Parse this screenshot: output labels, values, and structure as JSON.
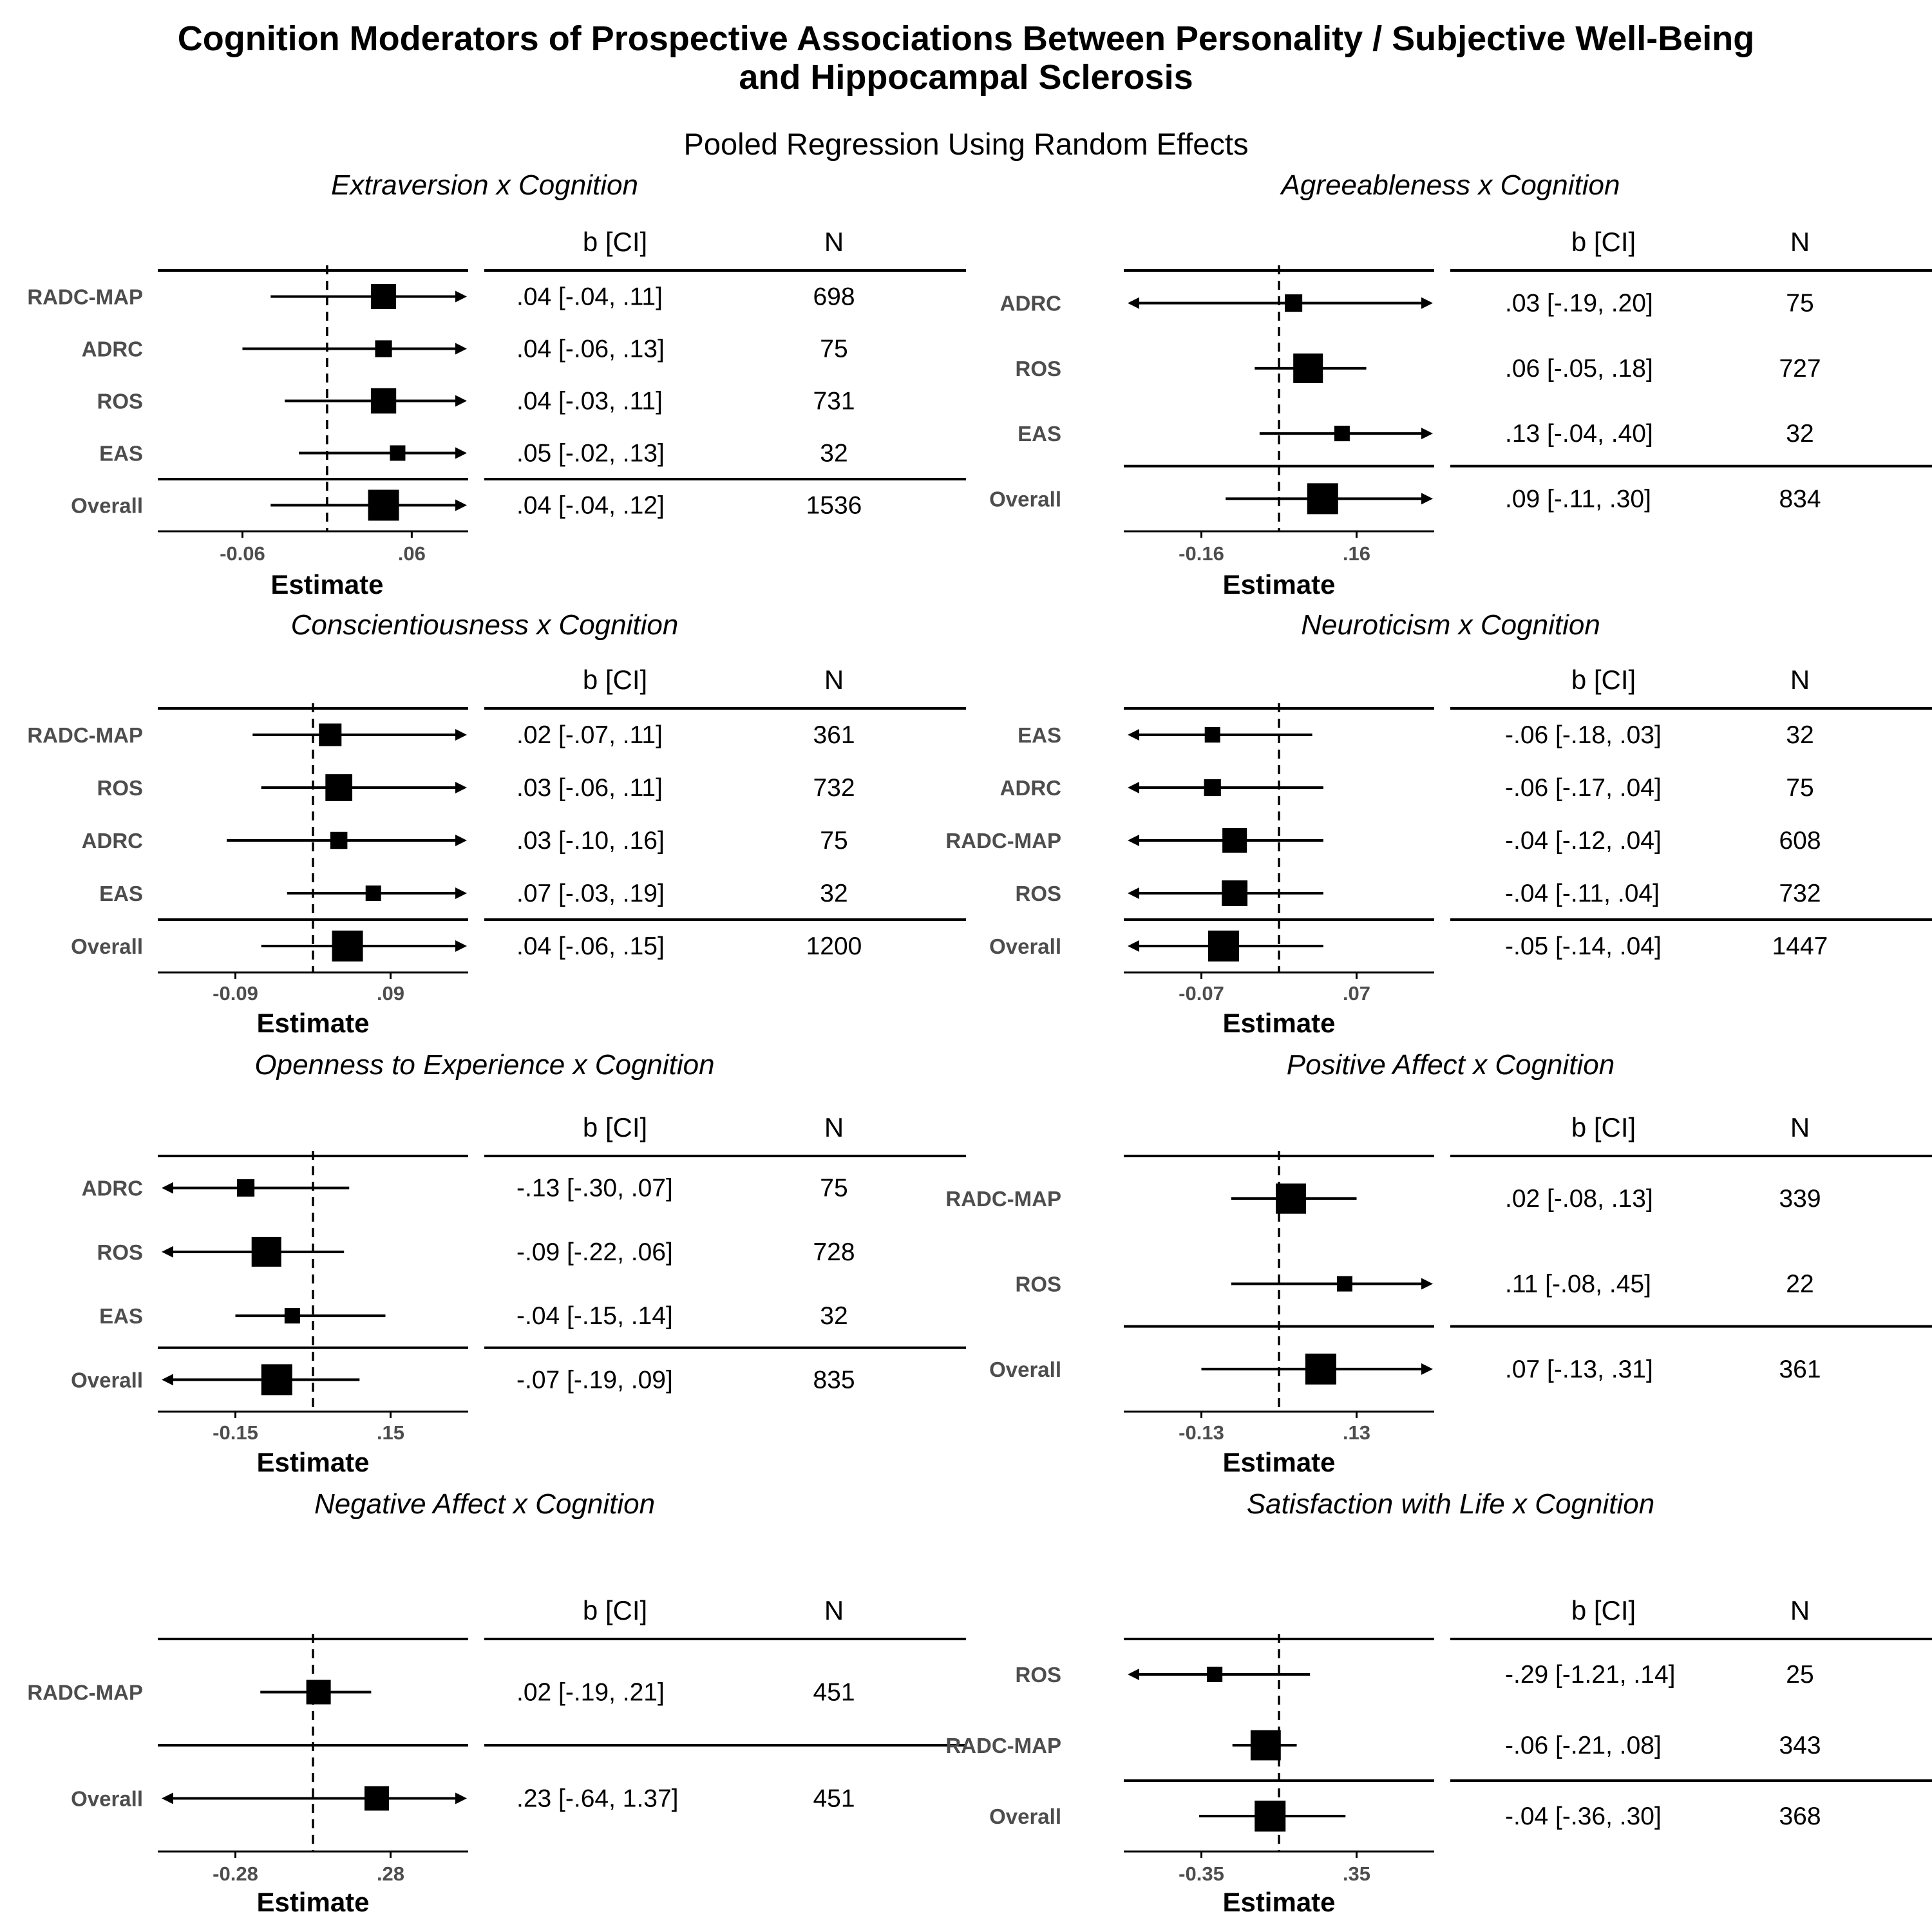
{
  "title": {
    "line1": "Cognition Moderators of Prospective Associations Between Personality / Subjective Well-Being",
    "line2": "and Hippocampal Sclerosis",
    "subtitle": "Pooled Regression Using Random Effects"
  },
  "table_headers": {
    "estimate": "b [CI]",
    "n": "N"
  },
  "axis_title": "Estimate",
  "chart_data": [
    {
      "type": "forest",
      "title": "Extraversion x Cognition",
      "xlim": [
        -0.12,
        0.1
      ],
      "ticks": [
        -0.06,
        0.06
      ],
      "tick_labels": [
        "-0.06",
        ".06"
      ],
      "xlabel": "Estimate",
      "rows": [
        {
          "study": "RADC-MAP",
          "b": 0.04,
          "lo": -0.04,
          "hi": 0.11,
          "n": 698,
          "text": ".04 [-.04, .11]",
          "n_text": "698",
          "arrow_lo": false,
          "arrow_hi": true
        },
        {
          "study": "ADRC",
          "b": 0.04,
          "lo": -0.06,
          "hi": 0.13,
          "n": 75,
          "text": ".04 [-.06, .13]",
          "n_text": "75",
          "arrow_lo": false,
          "arrow_hi": true
        },
        {
          "study": "ROS",
          "b": 0.04,
          "lo": -0.03,
          "hi": 0.11,
          "n": 731,
          "text": ".04 [-.03, .11]",
          "n_text": "731",
          "arrow_lo": false,
          "arrow_hi": true
        },
        {
          "study": "EAS",
          "b": 0.05,
          "lo": -0.02,
          "hi": 0.13,
          "n": 32,
          "text": ".05 [-.02, .13]",
          "n_text": "32",
          "arrow_lo": false,
          "arrow_hi": true
        }
      ],
      "overall": {
        "study": "Overall",
        "b": 0.04,
        "lo": -0.04,
        "hi": 0.12,
        "n": 1536,
        "text": ".04 [-.04, .12]",
        "n_text": "1536",
        "arrow_lo": false,
        "arrow_hi": true
      }
    },
    {
      "type": "forest",
      "title": "Agreeableness x Cognition",
      "xlim": [
        -0.32,
        0.32
      ],
      "ticks": [
        -0.16,
        0.16
      ],
      "tick_labels": [
        "-0.16",
        ".16"
      ],
      "xlabel": "Estimate",
      "rows": [
        {
          "study": "ADRC",
          "b": 0.03,
          "lo": -0.19,
          "hi": 0.2,
          "n": 75,
          "text": ".03 [-.19, .20]",
          "n_text": "75",
          "arrow_lo": true,
          "arrow_hi": true
        },
        {
          "study": "ROS",
          "b": 0.06,
          "lo": -0.05,
          "hi": 0.18,
          "n": 727,
          "text": ".06 [-.05, .18]",
          "n_text": "727",
          "arrow_lo": false,
          "arrow_hi": false
        },
        {
          "study": "EAS",
          "b": 0.13,
          "lo": -0.04,
          "hi": 0.4,
          "n": 32,
          "text": ".13 [-.04, .40]",
          "n_text": "32",
          "arrow_lo": false,
          "arrow_hi": true
        }
      ],
      "overall": {
        "study": "Overall",
        "b": 0.09,
        "lo": -0.11,
        "hi": 0.3,
        "n": 834,
        "text": ".09 [-.11, .30]",
        "n_text": "834",
        "arrow_lo": false,
        "arrow_hi": true
      }
    },
    {
      "type": "forest",
      "title": "Conscientiousness x Cognition",
      "xlim": [
        -0.18,
        0.18
      ],
      "ticks": [
        -0.09,
        0.09
      ],
      "tick_labels": [
        "-0.09",
        ".09"
      ],
      "xlabel": "Estimate",
      "rows": [
        {
          "study": "RADC-MAP",
          "b": 0.02,
          "lo": -0.07,
          "hi": 0.11,
          "n": 361,
          "text": ".02 [-.07, .11]",
          "n_text": "361",
          "arrow_lo": false,
          "arrow_hi": true
        },
        {
          "study": "ROS",
          "b": 0.03,
          "lo": -0.06,
          "hi": 0.11,
          "n": 732,
          "text": ".03 [-.06, .11]",
          "n_text": "732",
          "arrow_lo": false,
          "arrow_hi": true
        },
        {
          "study": "ADRC",
          "b": 0.03,
          "lo": -0.1,
          "hi": 0.16,
          "n": 75,
          "text": ".03 [-.10, .16]",
          "n_text": "75",
          "arrow_lo": false,
          "arrow_hi": true
        },
        {
          "study": "EAS",
          "b": 0.07,
          "lo": -0.03,
          "hi": 0.19,
          "n": 32,
          "text": ".07 [-.03, .19]",
          "n_text": "32",
          "arrow_lo": false,
          "arrow_hi": true
        }
      ],
      "overall": {
        "study": "Overall",
        "b": 0.04,
        "lo": -0.06,
        "hi": 0.15,
        "n": 1200,
        "text": ".04 [-.06, .15]",
        "n_text": "1200",
        "arrow_lo": false,
        "arrow_hi": true
      }
    },
    {
      "type": "forest",
      "title": "Neuroticism x Cognition",
      "xlim": [
        -0.14,
        0.14
      ],
      "ticks": [
        -0.07,
        0.07
      ],
      "tick_labels": [
        "-0.07",
        ".07"
      ],
      "xlabel": "Estimate",
      "rows": [
        {
          "study": "EAS",
          "b": -0.06,
          "lo": -0.18,
          "hi": 0.03,
          "n": 32,
          "text": "-.06 [-.18, .03]",
          "n_text": "32",
          "arrow_lo": true,
          "arrow_hi": false
        },
        {
          "study": "ADRC",
          "b": -0.06,
          "lo": -0.17,
          "hi": 0.04,
          "n": 75,
          "text": "-.06 [-.17, .04]",
          "n_text": "75",
          "arrow_lo": true,
          "arrow_hi": false
        },
        {
          "study": "RADC-MAP",
          "b": -0.04,
          "lo": -0.12,
          "hi": 0.04,
          "n": 608,
          "text": "-.04 [-.12, .04]",
          "n_text": "608",
          "arrow_lo": true,
          "arrow_hi": false
        },
        {
          "study": "ROS",
          "b": -0.04,
          "lo": -0.11,
          "hi": 0.04,
          "n": 732,
          "text": "-.04 [-.11, .04]",
          "n_text": "732",
          "arrow_lo": true,
          "arrow_hi": false
        }
      ],
      "overall": {
        "study": "Overall",
        "b": -0.05,
        "lo": -0.14,
        "hi": 0.04,
        "n": 1447,
        "text": "-.05 [-.14, .04]",
        "n_text": "1447",
        "arrow_lo": true,
        "arrow_hi": false
      }
    },
    {
      "type": "forest",
      "title": "Openness to Experience x Cognition",
      "xlim": [
        -0.3,
        0.3
      ],
      "ticks": [
        -0.15,
        0.15
      ],
      "tick_labels": [
        "-0.15",
        ".15"
      ],
      "xlabel": "Estimate",
      "rows": [
        {
          "study": "ADRC",
          "b": -0.13,
          "lo": -0.3,
          "hi": 0.07,
          "n": 75,
          "text": "-.13 [-.30, .07]",
          "n_text": "75",
          "arrow_lo": true,
          "arrow_hi": false
        },
        {
          "study": "ROS",
          "b": -0.09,
          "lo": -0.22,
          "hi": 0.06,
          "n": 728,
          "text": "-.09 [-.22, .06]",
          "n_text": "728",
          "arrow_lo": true,
          "arrow_hi": false
        },
        {
          "study": "EAS",
          "b": -0.04,
          "lo": -0.15,
          "hi": 0.14,
          "n": 32,
          "text": "-.04 [-.15, .14]",
          "n_text": "32",
          "arrow_lo": false,
          "arrow_hi": false
        }
      ],
      "overall": {
        "study": "Overall",
        "b": -0.07,
        "lo": -0.19,
        "hi": 0.09,
        "n": 835,
        "text": "-.07 [-.19, .09]",
        "n_text": "835",
        "arrow_lo": true,
        "arrow_hi": false
      }
    },
    {
      "type": "forest",
      "title": "Positive Affect x Cognition",
      "xlim": [
        -0.26,
        0.26
      ],
      "ticks": [
        -0.13,
        0.13
      ],
      "tick_labels": [
        "-0.13",
        ".13"
      ],
      "xlabel": "Estimate",
      "rows": [
        {
          "study": "RADC-MAP",
          "b": 0.02,
          "lo": -0.08,
          "hi": 0.13,
          "n": 339,
          "text": ".02 [-.08, .13]",
          "n_text": "339",
          "arrow_lo": false,
          "arrow_hi": false
        },
        {
          "study": "ROS",
          "b": 0.11,
          "lo": -0.08,
          "hi": 0.45,
          "n": 22,
          "text": ".11 [-.08, .45]",
          "n_text": "22",
          "arrow_lo": false,
          "arrow_hi": true
        }
      ],
      "overall": {
        "study": "Overall",
        "b": 0.07,
        "lo": -0.13,
        "hi": 0.31,
        "n": 361,
        "text": ".07 [-.13, .31]",
        "n_text": "361",
        "arrow_lo": false,
        "arrow_hi": true
      }
    },
    {
      "type": "forest",
      "title": "Negative Affect x Cognition",
      "xlim": [
        -0.56,
        0.56
      ],
      "ticks": [
        -0.28,
        0.28
      ],
      "tick_labels": [
        "-0.28",
        ".28"
      ],
      "xlabel": "Estimate",
      "rows": [
        {
          "study": "RADC-MAP",
          "b": 0.02,
          "lo": -0.19,
          "hi": 0.21,
          "n": 451,
          "text": ".02 [-.19, .21]",
          "n_text": "451",
          "arrow_lo": false,
          "arrow_hi": false
        }
      ],
      "overall": {
        "study": "Overall",
        "b": 0.23,
        "lo": -0.64,
        "hi": 1.37,
        "n": 451,
        "text": ".23 [-.64, 1.37]",
        "n_text": "451",
        "arrow_lo": true,
        "arrow_hi": true
      }
    },
    {
      "type": "forest",
      "title": "Satisfaction with Life x Cognition",
      "xlim": [
        -0.7,
        0.7
      ],
      "ticks": [
        -0.35,
        0.35
      ],
      "tick_labels": [
        "-0.35",
        ".35"
      ],
      "xlabel": "Estimate",
      "rows": [
        {
          "study": "ROS",
          "b": -0.29,
          "lo": -1.21,
          "hi": 0.14,
          "n": 25,
          "text": "-.29 [-1.21, .14]",
          "n_text": "25",
          "arrow_lo": true,
          "arrow_hi": false
        },
        {
          "study": "RADC-MAP",
          "b": -0.06,
          "lo": -0.21,
          "hi": 0.08,
          "n": 343,
          "text": "-.06 [-.21, .08]",
          "n_text": "343",
          "arrow_lo": false,
          "arrow_hi": false
        }
      ],
      "overall": {
        "study": "Overall",
        "b": -0.04,
        "lo": -0.36,
        "hi": 0.3,
        "n": 368,
        "text": "-.04 [-.36, .30]",
        "n_text": "368",
        "arrow_lo": false,
        "arrow_hi": false
      }
    }
  ]
}
